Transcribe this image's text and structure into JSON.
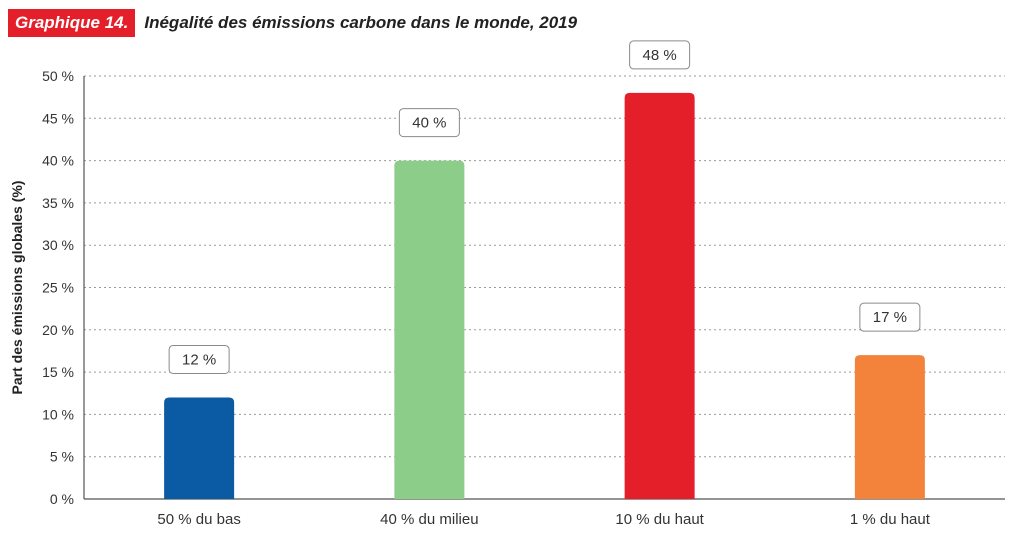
{
  "header": {
    "badge": "Graphique 14.",
    "title": "Inégalité des émissions carbone dans le monde, 2019"
  },
  "chart_data": {
    "type": "bar",
    "title": "Inégalité des émissions carbone dans le monde, 2019",
    "categories": [
      "50 % du bas",
      "40 % du milieu",
      "10 % du haut",
      "1 % du haut"
    ],
    "values": [
      12,
      40,
      48,
      17
    ],
    "value_labels": [
      "12 %",
      "40 %",
      "48 %",
      "17 %"
    ],
    "colors": [
      "#0a5aa4",
      "#8dcd8a",
      "#e41f2a",
      "#f3823b"
    ],
    "ylabel": "Part des émissions globales  (%)",
    "xlabel": "",
    "ylim": [
      0,
      50
    ],
    "yticks": [
      0,
      5,
      10,
      15,
      20,
      25,
      30,
      35,
      40,
      45,
      50
    ],
    "ytick_labels": [
      "0 %",
      "5 %",
      "10 %",
      "15 %",
      "20 %",
      "25 %",
      "30 %",
      "35 %",
      "40 %",
      "45 %",
      "50 %"
    ],
    "grid": true,
    "grid_style": "dotted",
    "legend": "none"
  }
}
